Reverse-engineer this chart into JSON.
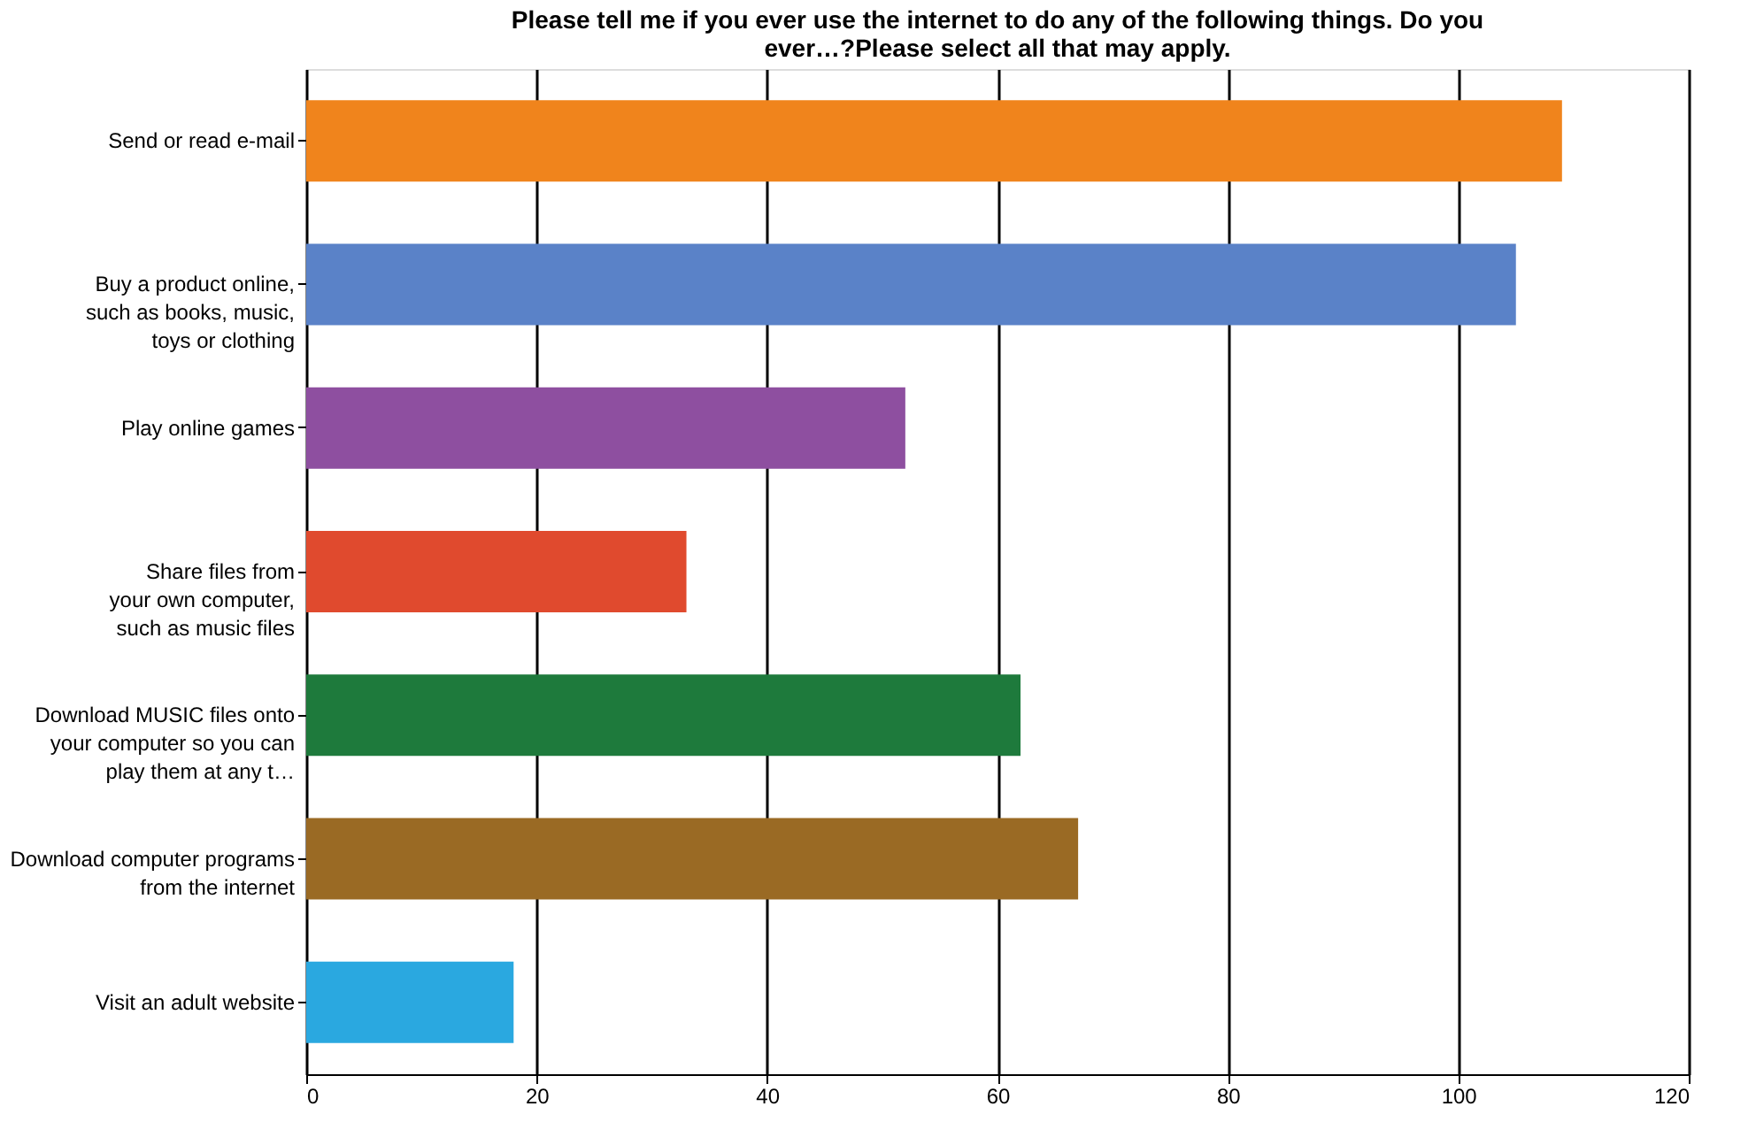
{
  "chart_data": {
    "type": "bar",
    "orientation": "horizontal",
    "title": "Please tell me if you ever use the internet to do any of the following things. Do you ever…?Please select all that may apply.",
    "categories": [
      "Send or read e-mail",
      "Buy a product online,\nsuch as books, music,\ntoys or clothing",
      "Play online games",
      "Share files from\nyour own computer,\nsuch as music files",
      "Download MUSIC files onto\nyour computer so you can\nplay them at any t…",
      "Download computer programs\nfrom the internet",
      "Visit an adult website"
    ],
    "values": [
      109,
      105,
      52,
      33,
      62,
      67,
      18
    ],
    "colors": [
      "#f0841c",
      "#5a82c8",
      "#8e4fa0",
      "#e04a2e",
      "#1e7a3c",
      "#9a6a24",
      "#2aa8e0"
    ],
    "xlim": [
      0,
      120
    ],
    "xticks": [
      0,
      20,
      40,
      60,
      80,
      100,
      120
    ],
    "grid": "x"
  }
}
